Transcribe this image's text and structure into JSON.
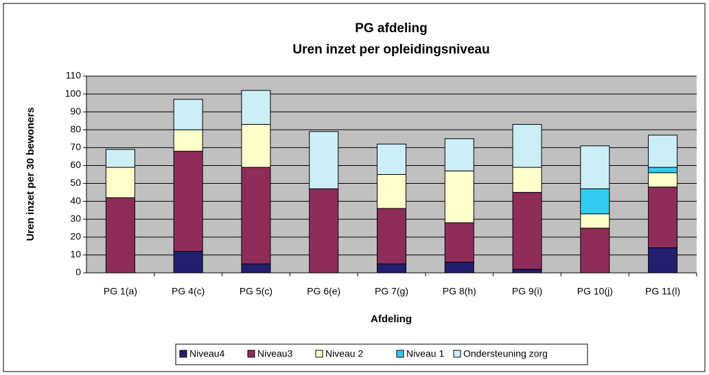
{
  "chart_data": {
    "type": "stacked_bar",
    "title": "PG afdeling",
    "subtitle": "Uren inzet per opleidingsniveau",
    "x_label": "Afdeling",
    "y_label": "Uren inzet per 30 bewoners",
    "categories": [
      "PG 1(a)",
      "PG 4(c)",
      "PG 5(c)",
      "PG 6(e)",
      "PG 7(g)",
      "PG 8(h)",
      "PG 9(i)",
      "PG 10(j)",
      "PG 11(l)"
    ],
    "series": [
      {
        "name": "Niveau4",
        "color": "#231f6e",
        "values": [
          0,
          12,
          5,
          0,
          5,
          6,
          2,
          0,
          14
        ]
      },
      {
        "name": "Niveau3",
        "color": "#8e2d5a",
        "values": [
          42,
          56,
          54,
          47,
          31,
          22,
          43,
          25,
          34
        ]
      },
      {
        "name": "Niveau 2",
        "color": "#ffffcc",
        "values": [
          17,
          12,
          24,
          0,
          19,
          29,
          14,
          8,
          8
        ]
      },
      {
        "name": "Niveau 1",
        "color": "#33ccee",
        "values": [
          0,
          0,
          0,
          0,
          0,
          0,
          0,
          14,
          3
        ]
      },
      {
        "name": "Ondersteuning zorg",
        "color": "#cceef7",
        "values": [
          10,
          17,
          19,
          32,
          17,
          18,
          24,
          24,
          18
        ]
      }
    ],
    "ylim": [
      0,
      110
    ],
    "yticks": [
      0,
      10,
      20,
      30,
      40,
      50,
      60,
      70,
      80,
      90,
      100,
      110
    ],
    "grid": true,
    "legend": "bottom"
  }
}
